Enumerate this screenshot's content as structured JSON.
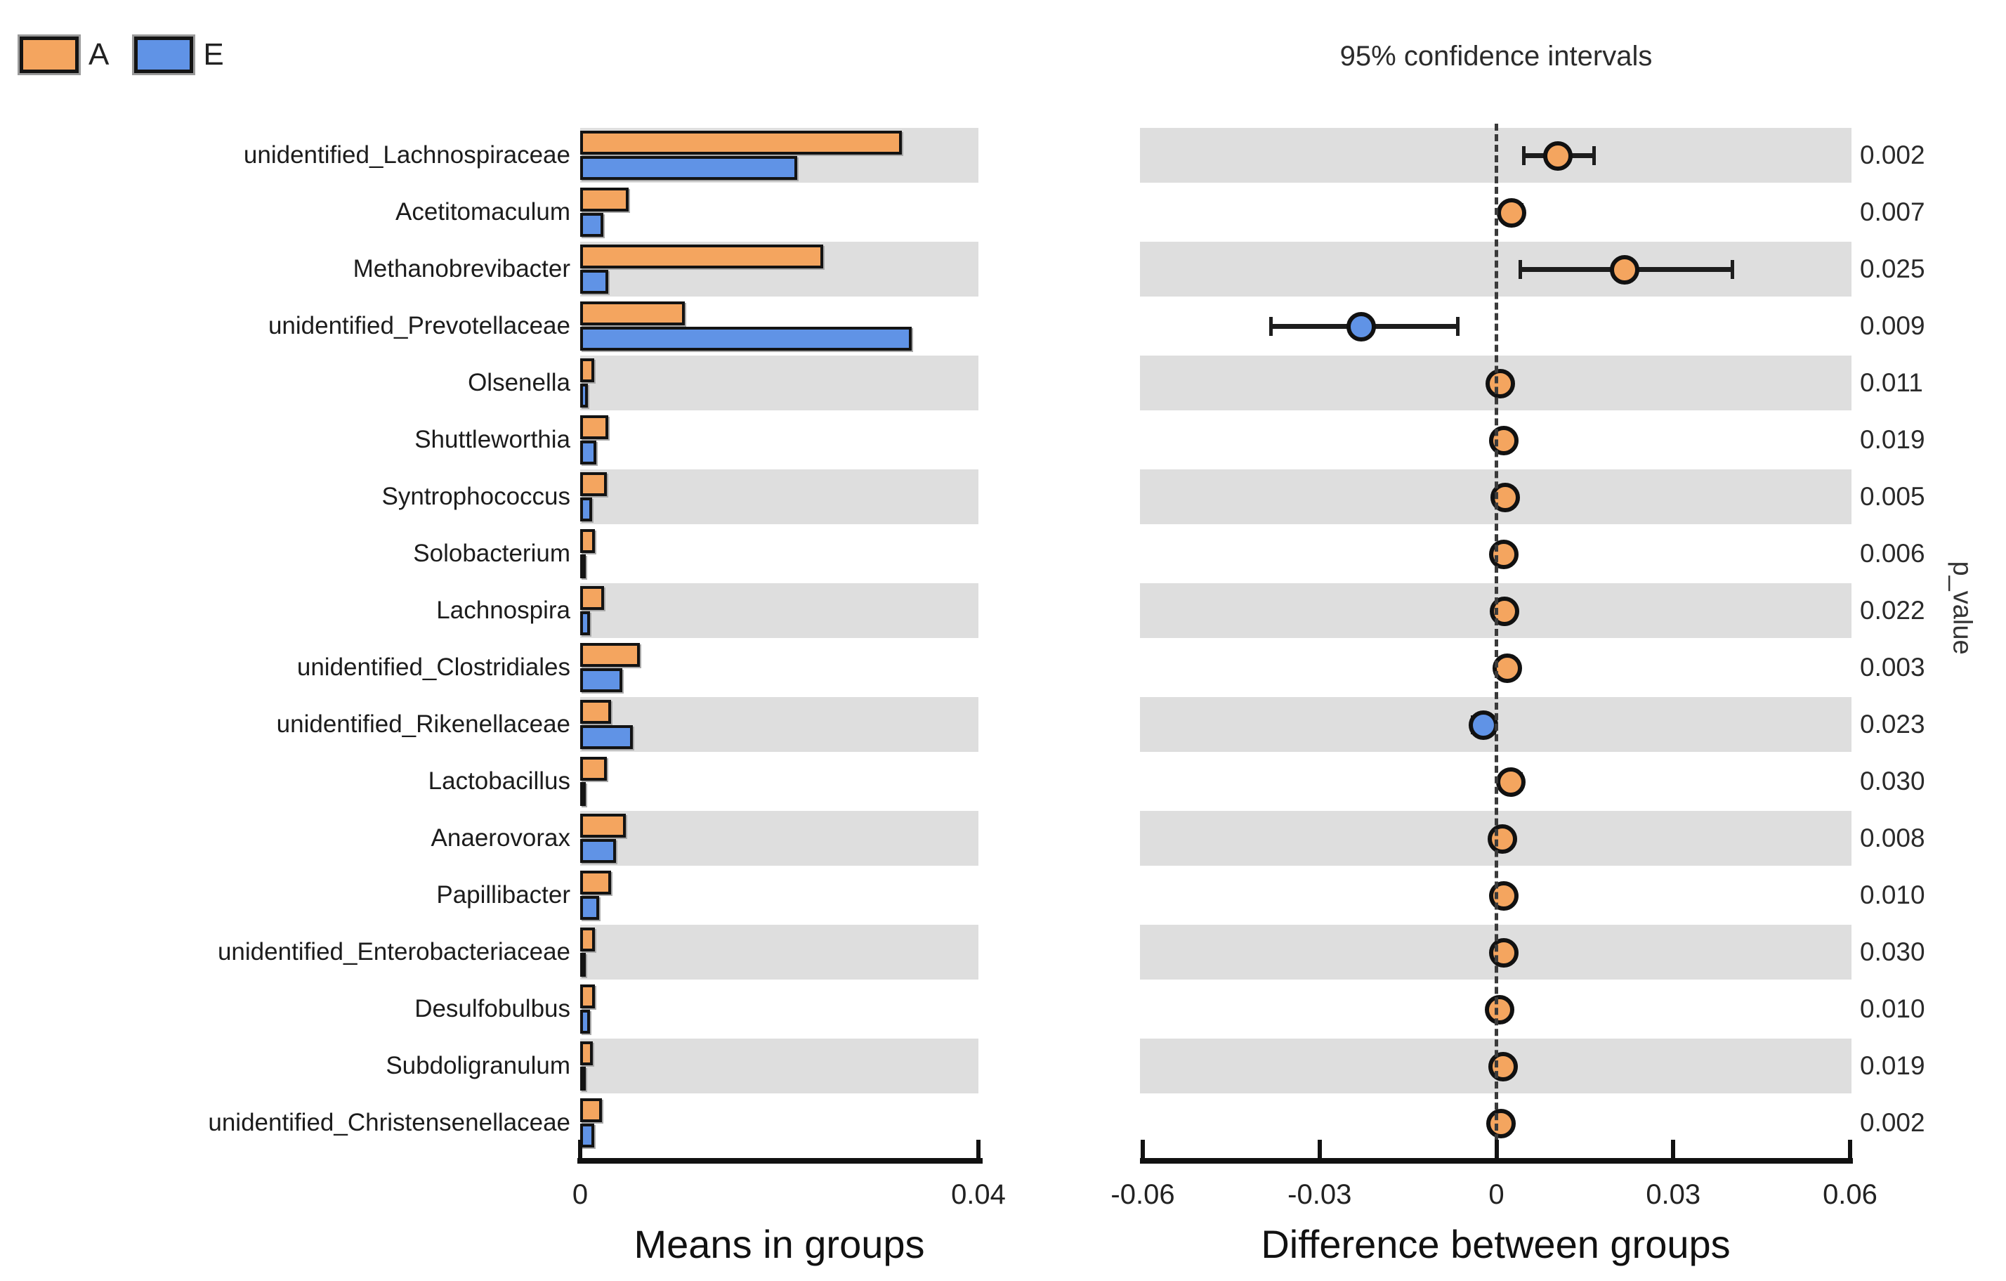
{
  "legend": {
    "items": [
      {
        "label": "A",
        "color": "#f4a55f"
      },
      {
        "label": "E",
        "color": "#6093e6"
      }
    ]
  },
  "title_right": "95% confidence intervals",
  "side_label": "p_value",
  "chart_data": {
    "type": "bar",
    "title": "95% confidence intervals",
    "categories": [
      "unidentified_Lachnospiraceae",
      "Acetitomaculum",
      "Methanobrevibacter",
      "unidentified_Prevotellaceae",
      "Olsenella",
      "Shuttleworthia",
      "Syntrophococcus",
      "Solobacterium",
      "Lachnospira",
      "unidentified_Clostridiales",
      "unidentified_Rikenellaceae",
      "Lactobacillus",
      "Anaerovorax",
      "Papillibacter",
      "unidentified_Enterobacteriaceae",
      "Desulfobulbus",
      "Subdoligranulum",
      "unidentified_Christensenellaceae"
    ],
    "shading": "alternate-start-first",
    "left_panel": {
      "xlabel": "Means in groups",
      "xlim": [
        0,
        0.04
      ],
      "tick_values": [
        0,
        0.04
      ],
      "tick_labels": [
        "0",
        "0.04"
      ],
      "series": [
        {
          "name": "A",
          "color": "#f4a55f",
          "values": [
            0.0323,
            0.0049,
            0.0244,
            0.0105,
            0.0014,
            0.0028,
            0.0027,
            0.0015,
            0.0024,
            0.006,
            0.0031,
            0.0027,
            0.0046,
            0.0031,
            0.0015,
            0.0015,
            0.0013,
            0.0022
          ]
        },
        {
          "name": "E",
          "color": "#6093e6",
          "values": [
            0.0218,
            0.0023,
            0.0028,
            0.0333,
            0.0008,
            0.0016,
            0.0012,
            0.0002,
            0.001,
            0.0042,
            0.0053,
            0.0002,
            0.0036,
            0.0019,
            0.0003,
            0.001,
            0.0002,
            0.0014
          ]
        }
      ]
    },
    "right_panel": {
      "xlabel": "Difference between groups",
      "xlim": [
        -0.06,
        0.06
      ],
      "tick_values": [
        -0.06,
        -0.03,
        0,
        0.03,
        0.06
      ],
      "tick_labels": [
        "-0.06",
        "-0.03",
        "0",
        "0.03",
        "0.06"
      ],
      "zero_line_dashed": true,
      "diff_means": [
        0.0104,
        0.0026,
        0.0218,
        -0.0229,
        0.0006,
        0.0012,
        0.0015,
        0.0013,
        0.0014,
        0.0018,
        -0.0022,
        0.0025,
        0.001,
        0.0012,
        0.0012,
        0.0005,
        0.0011,
        0.0008
      ],
      "ci_low": [
        0.0047,
        0.0009,
        0.004,
        -0.0383,
        0.0001,
        0.0003,
        0.0005,
        0.0004,
        0.0003,
        0.0006,
        -0.0041,
        0.0008,
        0.0003,
        0.0003,
        0.0003,
        0.0001,
        0.0003,
        0.0002
      ],
      "ci_high": [
        0.0166,
        0.0043,
        0.04,
        -0.0066,
        0.0011,
        0.0021,
        0.0025,
        0.0022,
        0.0025,
        0.003,
        -0.0004,
        0.0042,
        0.0017,
        0.0021,
        0.0021,
        0.0009,
        0.0019,
        0.0014
      ],
      "marker_colors": [
        "#f4a55f",
        "#f4a55f",
        "#f4a55f",
        "#6093e6",
        "#f4a55f",
        "#f4a55f",
        "#f4a55f",
        "#f4a55f",
        "#f4a55f",
        "#f4a55f",
        "#6093e6",
        "#f4a55f",
        "#f4a55f",
        "#f4a55f",
        "#f4a55f",
        "#f4a55f",
        "#f4a55f",
        "#f4a55f"
      ]
    },
    "p_values": [
      "0.002",
      "0.007",
      "0.025",
      "0.009",
      "0.011",
      "0.019",
      "0.005",
      "0.006",
      "0.022",
      "0.003",
      "0.023",
      "0.030",
      "0.008",
      "0.010",
      "0.030",
      "0.010",
      "0.019",
      "0.002"
    ]
  }
}
